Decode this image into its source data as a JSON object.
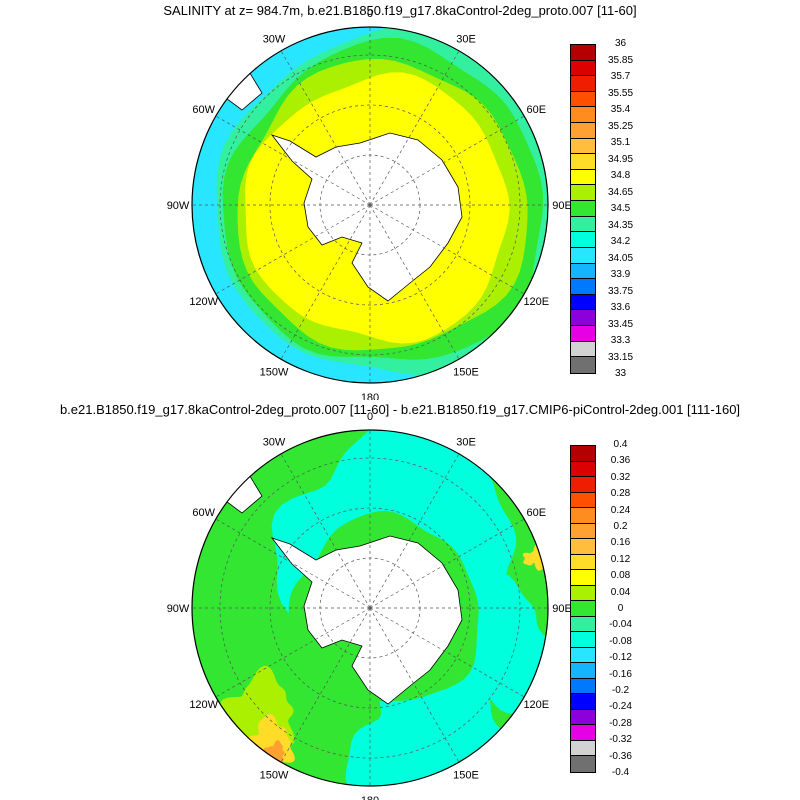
{
  "panel_top": {
    "title": "SALINITY at z= 984.7m, b.e21.B1850.f19_g17.8kaControl-2deg_proto.007 [11-60]",
    "longitude_labels": [
      "0",
      "30E",
      "60E",
      "90E",
      "120E",
      "150E",
      "180",
      "150W",
      "120W",
      "90W",
      "60W",
      "30W"
    ],
    "colorbar": {
      "levels": [
        "36",
        "35.85",
        "35.7",
        "35.55",
        "35.4",
        "35.25",
        "35.1",
        "34.95",
        "34.8",
        "34.65",
        "34.5",
        "34.35",
        "34.2",
        "34.05",
        "33.9",
        "33.75",
        "33.6",
        "33.45",
        "33.3",
        "33.15",
        "33"
      ],
      "colors": [
        "#b40000",
        "#dc0000",
        "#f01e00",
        "#ff5000",
        "#ff8c1e",
        "#ffa032",
        "#ffbe3c",
        "#ffdc28",
        "#ffff00",
        "#aaf000",
        "#32e632",
        "#32f0a0",
        "#00ffdc",
        "#28e6ff",
        "#14b4ff",
        "#0078ff",
        "#0000ff",
        "#8c00dc",
        "#e600e6",
        "#d2d2d2",
        "#707070"
      ]
    }
  },
  "panel_bottom": {
    "title": "b.e21.B1850.f19_g17.8kaControl-2deg_proto.007 [11-60] - b.e21.B1850.f19_g17.CMIP6-piControl-2deg.001 [111-160]",
    "longitude_labels": [
      "0",
      "30E",
      "60E",
      "90E",
      "120E",
      "150E",
      "180",
      "150W",
      "120W",
      "90W",
      "60W",
      "30W"
    ],
    "colorbar": {
      "levels": [
        "0.4",
        "0.36",
        "0.32",
        "0.28",
        "0.24",
        "0.2",
        "0.16",
        "0.12",
        "0.08",
        "0.04",
        "0",
        "-0.04",
        "-0.08",
        "-0.12",
        "-0.16",
        "-0.2",
        "-0.24",
        "-0.28",
        "-0.32",
        "-0.36",
        "-0.4"
      ],
      "colors": [
        "#b40000",
        "#dc0000",
        "#f01e00",
        "#ff5000",
        "#ff8c1e",
        "#ffa032",
        "#ffbe3c",
        "#ffdc28",
        "#ffff00",
        "#aaf000",
        "#32e632",
        "#32f0a0",
        "#00ffdc",
        "#28e6ff",
        "#14b4ff",
        "#0078ff",
        "#0000ff",
        "#8c00dc",
        "#e600e6",
        "#d2d2d2",
        "#707070"
      ]
    }
  },
  "colors": {
    "land": "#ffffff",
    "outline": "#000000",
    "grid": "#555555",
    "top_outer": "#28e6ff",
    "top_mid": "#32f0a0",
    "top_green": "#32e632",
    "top_lime": "#aaf000",
    "top_core": "#ffff00",
    "bottom_base": "#32e632",
    "bottom_cyan": "#00ffdc",
    "bottom_light": "#aaf000",
    "bottom_yellow": "#ffdc28",
    "bottom_orange": "#ffa032"
  }
}
